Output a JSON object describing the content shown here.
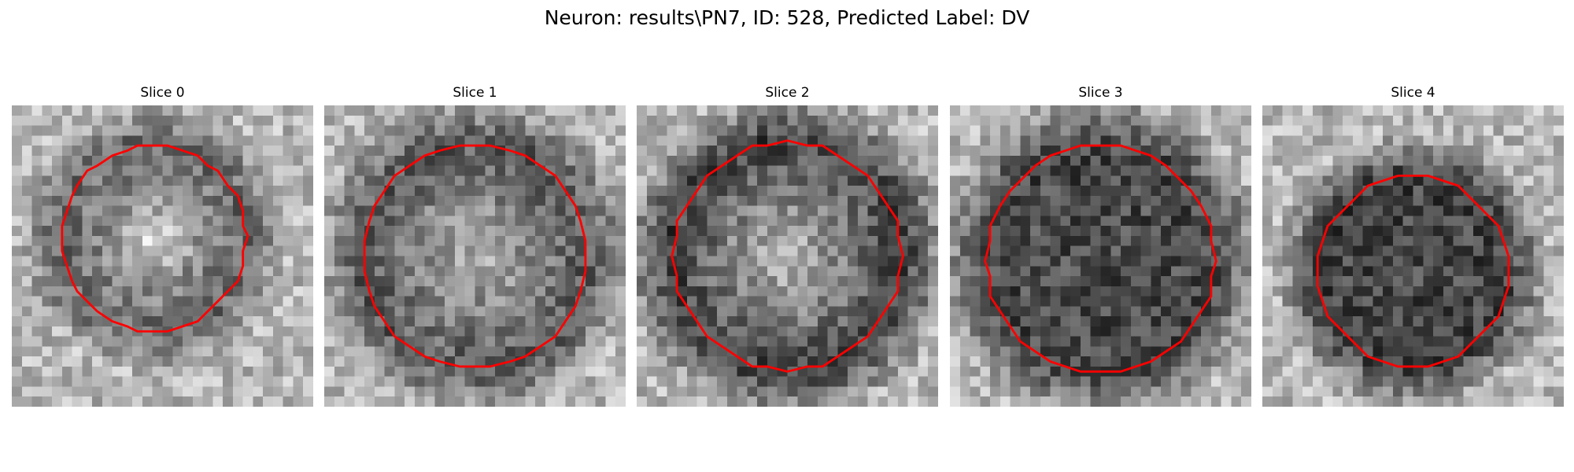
{
  "figure": {
    "title": "Neuron: results\\PN7, ID: 528, Predicted Label: DV"
  },
  "colors": {
    "background": "#ffffff",
    "contour": "#ff0000",
    "text": "#000000"
  },
  "panels": [
    {
      "title": "Slice 0",
      "icon": "grayscale-microscopy-image"
    },
    {
      "title": "Slice 1",
      "icon": "grayscale-microscopy-image"
    },
    {
      "title": "Slice 2",
      "icon": "grayscale-microscopy-image"
    },
    {
      "title": "Slice 3",
      "icon": "grayscale-microscopy-image"
    },
    {
      "title": "Slice 4",
      "icon": "grayscale-microscopy-image"
    }
  ]
}
